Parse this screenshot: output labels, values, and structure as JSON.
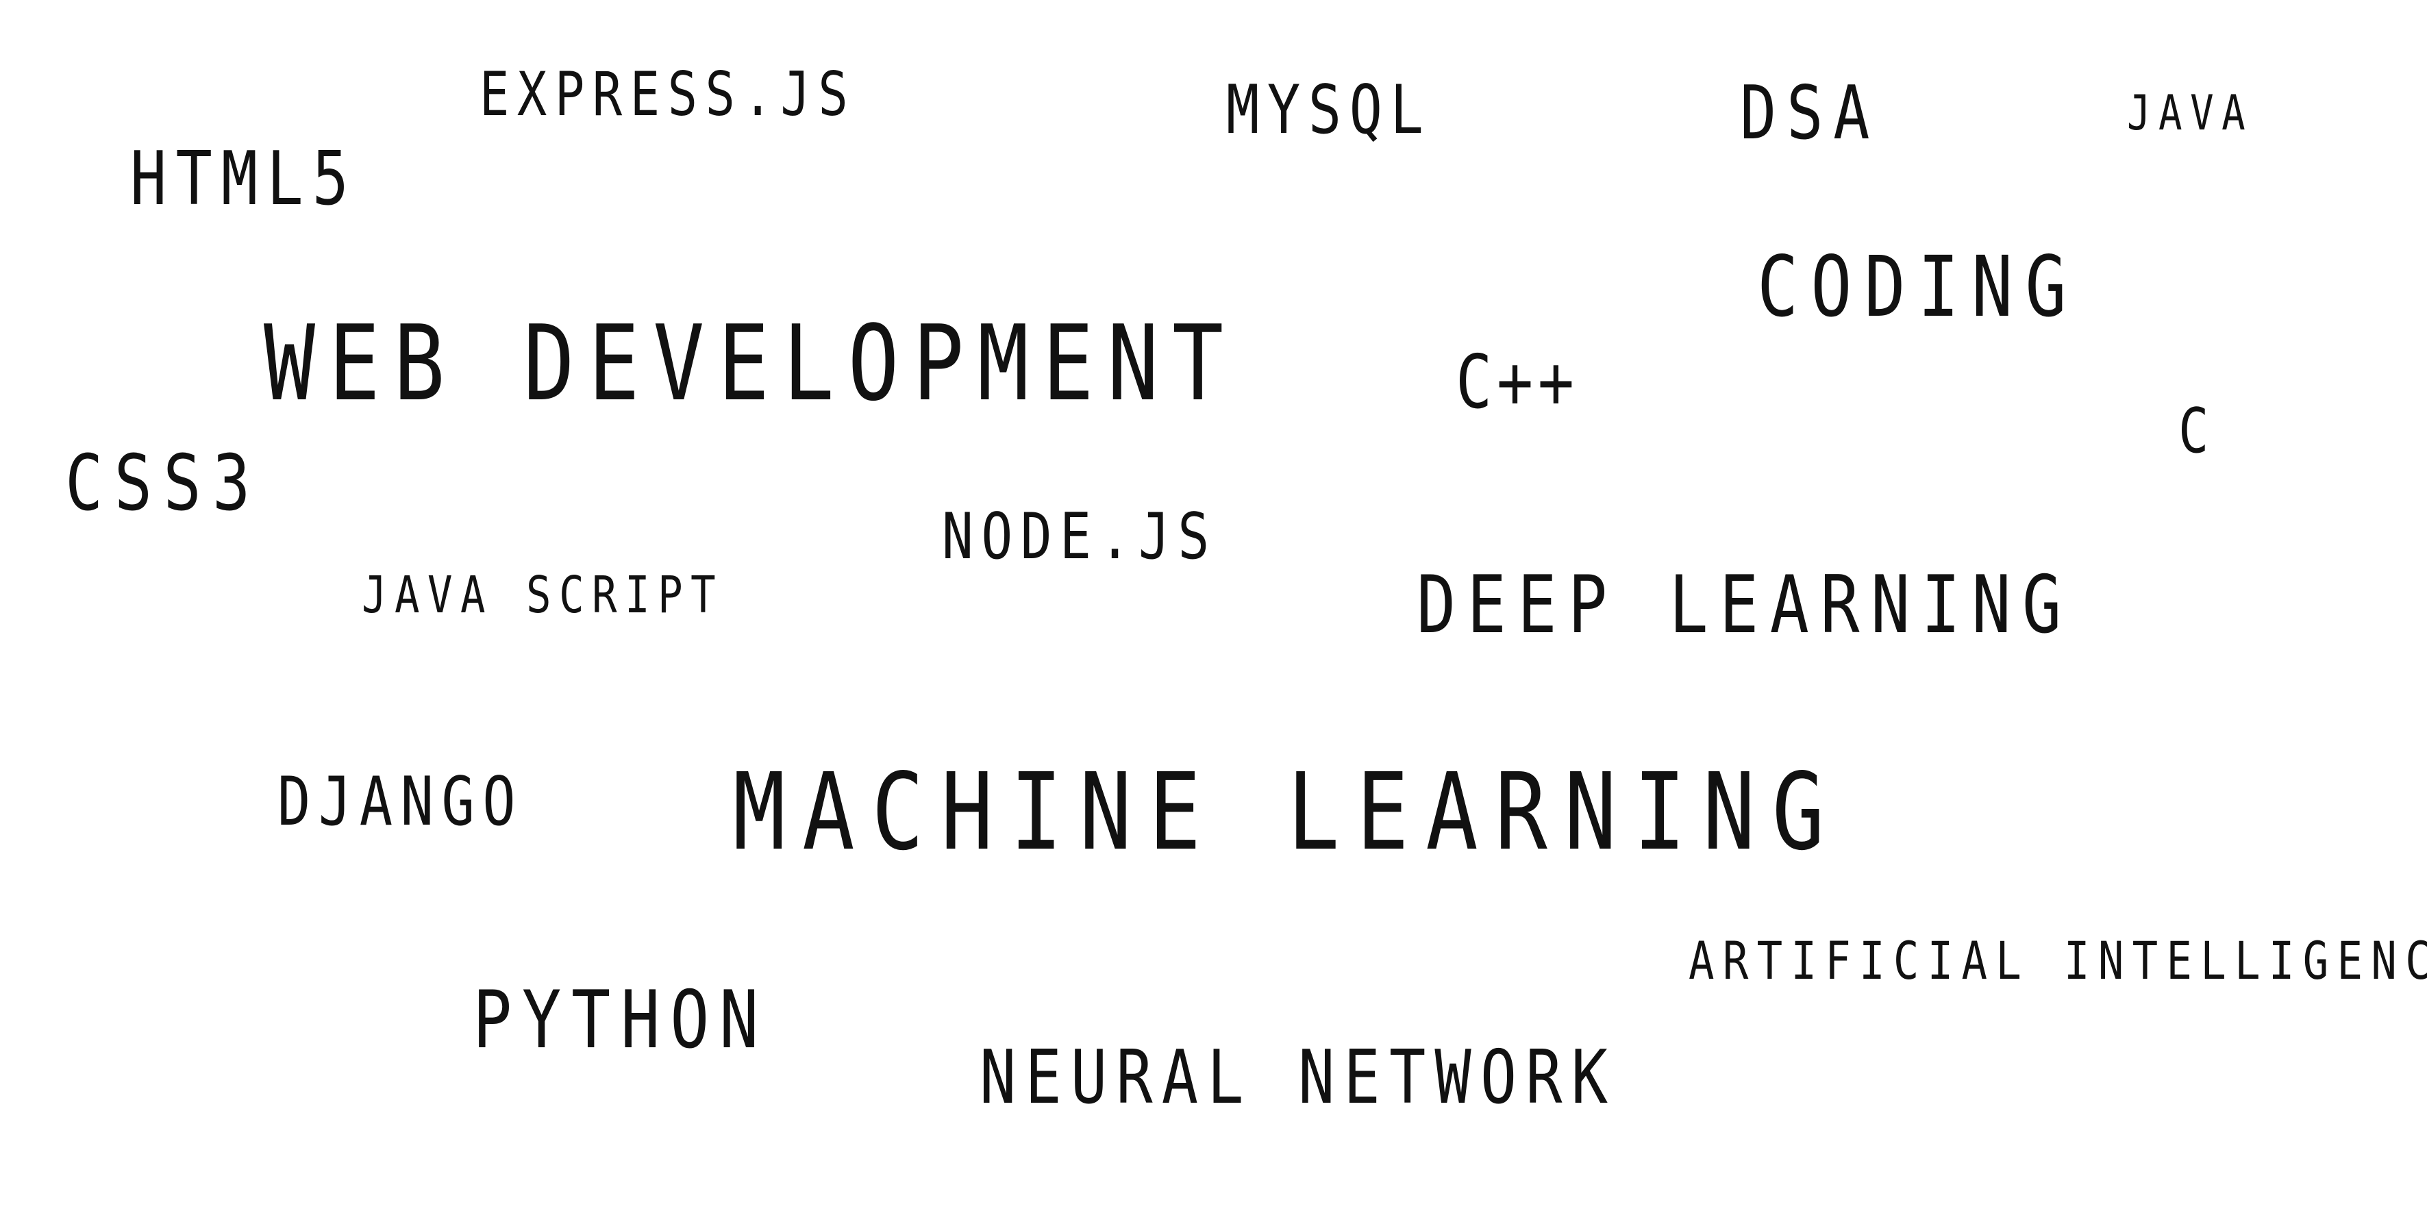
{
  "word_cloud": {
    "express": "EXPRESS.JS",
    "mysql": "MYSQL",
    "dsa": "DSA",
    "java": "JAVA",
    "html5": "HTML5",
    "coding": "CODING",
    "web_development": "WEB DEVELOPMENT",
    "cpp": "C++",
    "c": "C",
    "css3": "CSS3",
    "node": "NODE.JS",
    "java_script": "JAVA SCRIPT",
    "deep_learning": "DEEP LEARNING",
    "django": "DJANGO",
    "machine_learning": "MACHINE LEARNING",
    "artificial_intelligence": "ARTIFICIAL INTELLIGENCE",
    "python": "PYTHON",
    "neural_network": "NEURAL NETWORK"
  },
  "colors": {
    "background": "#ffffff",
    "text": "#111111"
  }
}
